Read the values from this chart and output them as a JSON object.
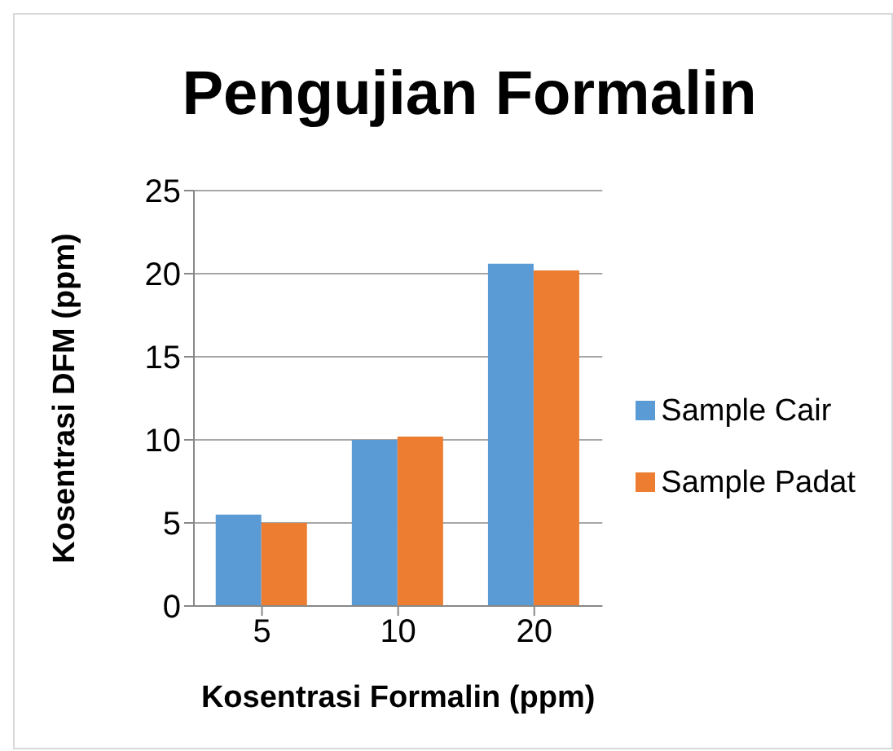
{
  "chart_data": {
    "type": "bar",
    "title": "Pengujian Formalin",
    "xlabel": "Kosentrasi Formalin (ppm)",
    "ylabel": "Kosentrasi DFM (ppm)",
    "categories": [
      "5",
      "10",
      "20"
    ],
    "series": [
      {
        "name": "Sample Cair",
        "color": "#5b9bd5",
        "values": [
          5.5,
          10,
          20.6
        ]
      },
      {
        "name": "Sample Padat",
        "color": "#ed7d31",
        "values": [
          5,
          10.2,
          20.2
        ]
      }
    ],
    "ylim": [
      0,
      25
    ],
    "yticks": [
      0,
      5,
      10,
      15,
      20,
      25
    ],
    "grid": "y",
    "legend": "right"
  }
}
